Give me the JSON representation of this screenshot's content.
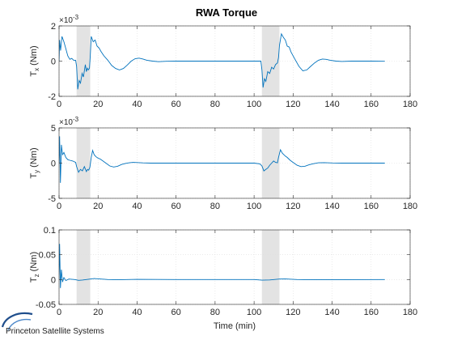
{
  "chart_data": {
    "type": "line",
    "title": "RWA Torque",
    "xlabel": "Time (min)",
    "xlim": [
      0,
      180
    ],
    "xticks": [
      0,
      20,
      40,
      60,
      80,
      100,
      120,
      140,
      160,
      180
    ],
    "shaded_intervals": [
      [
        9,
        16
      ],
      [
        104,
        113
      ]
    ],
    "line_color": "#0072bd",
    "shade_color": "#e3e3e3",
    "grid_color": "#dedede",
    "subplots": [
      {
        "id": "tx",
        "ylabel_base": "T",
        "ylabel_sub": "x",
        "ylabel_unit": " (Nm)",
        "exponent_text": "×10",
        "exponent_power": "-3",
        "ylim": [
          -2,
          2
        ],
        "yticks": [
          -2,
          0,
          2
        ],
        "points": [
          [
            0,
            0
          ],
          [
            0.3,
            1.2
          ],
          [
            0.8,
            0.6
          ],
          [
            1.5,
            1.4
          ],
          [
            2.5,
            1.1
          ],
          [
            3.5,
            0.7
          ],
          [
            4.5,
            0.3
          ],
          [
            5.5,
            0.1
          ],
          [
            6.5,
            0.15
          ],
          [
            7.5,
            0.05
          ],
          [
            8.5,
            0.05
          ],
          [
            9,
            -0.3
          ],
          [
            9.6,
            -1.6
          ],
          [
            10.3,
            -1.1
          ],
          [
            11,
            -1.25
          ],
          [
            11.8,
            -0.7
          ],
          [
            12.5,
            -0.9
          ],
          [
            13.5,
            -0.2
          ],
          [
            14,
            -0.6
          ],
          [
            14.5,
            -0.4
          ],
          [
            15,
            -0.5
          ],
          [
            15.6,
            -0.4
          ],
          [
            16,
            0.3
          ],
          [
            16.5,
            1.4
          ],
          [
            17.5,
            1.1
          ],
          [
            18.5,
            1.2
          ],
          [
            19.5,
            0.85
          ],
          [
            20.5,
            0.75
          ],
          [
            21.5,
            0.55
          ],
          [
            23,
            0.3
          ],
          [
            25,
            0.05
          ],
          [
            27,
            -0.25
          ],
          [
            29,
            -0.42
          ],
          [
            31,
            -0.5
          ],
          [
            33,
            -0.42
          ],
          [
            35,
            -0.22
          ],
          [
            37,
            0
          ],
          [
            39,
            0.14
          ],
          [
            41,
            0.17
          ],
          [
            43,
            0.12
          ],
          [
            45,
            0.05
          ],
          [
            48,
            0
          ],
          [
            51,
            -0.03
          ],
          [
            55,
            -0.01
          ],
          [
            60,
            0
          ],
          [
            80,
            0
          ],
          [
            100,
            0
          ],
          [
            103.5,
            0
          ],
          [
            104,
            -0.5
          ],
          [
            104.6,
            -1.5
          ],
          [
            105.3,
            -1.0
          ],
          [
            106,
            -1.15
          ],
          [
            107,
            -0.6
          ],
          [
            108,
            -0.7
          ],
          [
            109,
            -0.35
          ],
          [
            110,
            -0.45
          ],
          [
            111,
            -0.2
          ],
          [
            112,
            -0.1
          ],
          [
            112.5,
            0.2
          ],
          [
            113,
            0.9
          ],
          [
            114,
            1.55
          ],
          [
            115,
            1.35
          ],
          [
            116,
            1.2
          ],
          [
            117,
            0.85
          ],
          [
            118,
            0.8
          ],
          [
            119,
            0.5
          ],
          [
            121,
            0.1
          ],
          [
            123,
            -0.3
          ],
          [
            125,
            -0.55
          ],
          [
            127,
            -0.5
          ],
          [
            129,
            -0.3
          ],
          [
            131,
            -0.1
          ],
          [
            133,
            0.05
          ],
          [
            135,
            0.12
          ],
          [
            137,
            0.1
          ],
          [
            139,
            0.05
          ],
          [
            142,
            0
          ],
          [
            145,
            -0.02
          ],
          [
            150,
            0
          ],
          [
            160,
            0
          ],
          [
            167,
            -0.01
          ]
        ]
      },
      {
        "id": "ty",
        "ylabel_base": "T",
        "ylabel_sub": "y",
        "ylabel_unit": " (Nm)",
        "exponent_text": "×10",
        "exponent_power": "-3",
        "ylim": [
          -5,
          5
        ],
        "yticks": [
          -5,
          0,
          5
        ],
        "points": [
          [
            0,
            0
          ],
          [
            0.3,
            3.8
          ],
          [
            0.7,
            -2.8
          ],
          [
            1.2,
            2.6
          ],
          [
            1.8,
            1.2
          ],
          [
            2.5,
            1.5
          ],
          [
            3.5,
            0.8
          ],
          [
            4.5,
            0.5
          ],
          [
            5.5,
            0.4
          ],
          [
            7,
            0.3
          ],
          [
            8.5,
            0.1
          ],
          [
            9,
            -0.5
          ],
          [
            10,
            -1.3
          ],
          [
            11,
            -0.9
          ],
          [
            12,
            -1.1
          ],
          [
            13,
            -0.5
          ],
          [
            14,
            -1.2
          ],
          [
            14.6,
            -0.9
          ],
          [
            15.2,
            -1.0
          ],
          [
            15.8,
            -0.6
          ],
          [
            16.5,
            0.8
          ],
          [
            17.2,
            1.8
          ],
          [
            18,
            1.2
          ],
          [
            19,
            0.9
          ],
          [
            20,
            0.7
          ],
          [
            21,
            0.6
          ],
          [
            22.5,
            0.3
          ],
          [
            24,
            0
          ],
          [
            26,
            -0.4
          ],
          [
            28,
            -0.55
          ],
          [
            30,
            -0.45
          ],
          [
            32,
            -0.2
          ],
          [
            34,
            -0.05
          ],
          [
            36,
            0.05
          ],
          [
            38,
            0.1
          ],
          [
            40,
            0.08
          ],
          [
            43,
            0.03
          ],
          [
            47,
            0
          ],
          [
            55,
            0
          ],
          [
            100,
            0
          ],
          [
            103,
            -0.1
          ],
          [
            104,
            -0.4
          ],
          [
            105,
            -1.1
          ],
          [
            106,
            -0.9
          ],
          [
            107,
            -0.7
          ],
          [
            108,
            -0.3
          ],
          [
            109,
            0
          ],
          [
            110,
            0.3
          ],
          [
            111,
            0.1
          ],
          [
            112,
            0.05
          ],
          [
            112.5,
            0.8
          ],
          [
            113.5,
            1.9
          ],
          [
            114.5,
            1.4
          ],
          [
            116,
            1.0
          ],
          [
            117,
            0.8
          ],
          [
            118.5,
            0.4
          ],
          [
            120,
            0.1
          ],
          [
            122,
            -0.3
          ],
          [
            124,
            -0.5
          ],
          [
            126,
            -0.45
          ],
          [
            128,
            -0.25
          ],
          [
            130,
            -0.1
          ],
          [
            133,
            0.05
          ],
          [
            136,
            0.07
          ],
          [
            140,
            0.02
          ],
          [
            145,
            0
          ],
          [
            167,
            0
          ]
        ]
      },
      {
        "id": "tz",
        "ylabel_base": "T",
        "ylabel_sub": "z",
        "ylabel_unit": " (Nm)",
        "exponent_text": "",
        "exponent_power": "",
        "ylim": [
          -0.05,
          0.1
        ],
        "yticks": [
          -0.05,
          0,
          0.05,
          0.1
        ],
        "points": [
          [
            0,
            0
          ],
          [
            0.3,
            0.072
          ],
          [
            0.7,
            -0.017
          ],
          [
            1.2,
            0.02
          ],
          [
            1.8,
            -0.005
          ],
          [
            2.5,
            0.004
          ],
          [
            3.5,
            -0.002
          ],
          [
            5,
            0.001
          ],
          [
            8,
            0
          ],
          [
            10,
            -0.0015
          ],
          [
            12,
            -0.001
          ],
          [
            14,
            0
          ],
          [
            16,
            0.001
          ],
          [
            18,
            0.002
          ],
          [
            20,
            0.0015
          ],
          [
            25,
            0
          ],
          [
            30,
            -0.0005
          ],
          [
            40,
            0.0003
          ],
          [
            60,
            0
          ],
          [
            100,
            0
          ],
          [
            104,
            -0.0012
          ],
          [
            108,
            -0.0008
          ],
          [
            113,
            0.001
          ],
          [
            116,
            0.0012
          ],
          [
            122,
            0
          ],
          [
            130,
            -0.0004
          ],
          [
            167,
            0
          ]
        ]
      }
    ]
  },
  "branding": {
    "company": "Princeton Satellite Systems"
  }
}
